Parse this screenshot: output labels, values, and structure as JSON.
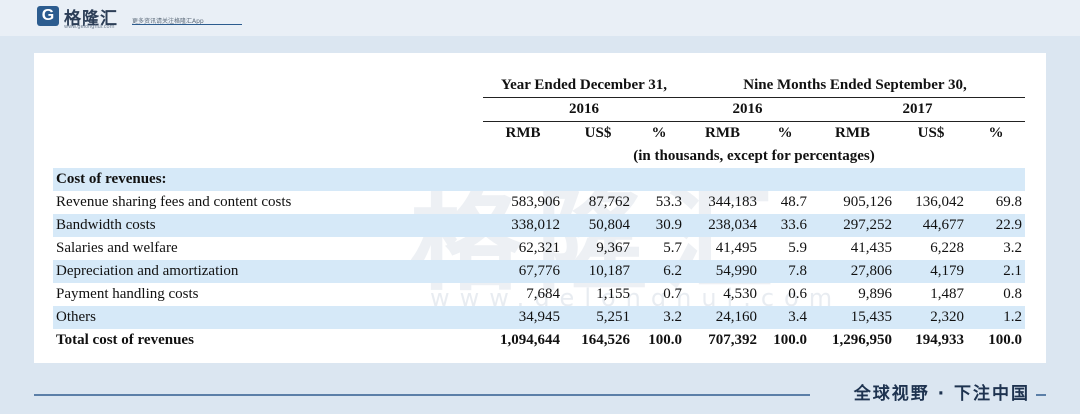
{
  "brand": {
    "logo_letter": "G",
    "name": "格隆汇",
    "url": "www.gelonghui.com",
    "slogan": "更多资讯请关注格隆汇App",
    "watermark": "格隆汇",
    "watermark_url": "www.gelonghui.com",
    "bottom_slogan": "全球视野 · 下注中国",
    "accent_color": "#2c5c8f",
    "row_shade_color": "#d6e9f8"
  },
  "table": {
    "group_headers": {
      "year_ended": "Year Ended December 31,",
      "nine_months": "Nine Months Ended September 30,"
    },
    "year_headers": {
      "fy2016": "2016",
      "nm2016": "2016",
      "nm2017": "2017"
    },
    "col_headers": [
      "RMB",
      "US$",
      "%",
      "RMB",
      "%",
      "RMB",
      "US$",
      "%"
    ],
    "unit_note": "(in thousands, except for percentages)",
    "section_title": "Cost of revenues:",
    "rows": [
      {
        "label": "Revenue sharing fees and content costs",
        "values": [
          "583,906",
          "87,762",
          "53.3",
          "344,183",
          "48.7",
          "905,126",
          "136,042",
          "69.8"
        ]
      },
      {
        "label": "Bandwidth costs",
        "values": [
          "338,012",
          "50,804",
          "30.9",
          "238,034",
          "33.6",
          "297,252",
          "44,677",
          "22.9"
        ]
      },
      {
        "label": "Salaries and welfare",
        "values": [
          "62,321",
          "9,367",
          "5.7",
          "41,495",
          "5.9",
          "41,435",
          "6,228",
          "3.2"
        ]
      },
      {
        "label": "Depreciation and amortization",
        "values": [
          "67,776",
          "10,187",
          "6.2",
          "54,990",
          "7.8",
          "27,806",
          "4,179",
          "2.1"
        ]
      },
      {
        "label": "Payment handling costs",
        "values": [
          "7,684",
          "1,155",
          "0.7",
          "4,530",
          "0.6",
          "9,896",
          "1,487",
          "0.8"
        ]
      },
      {
        "label": "Others",
        "values": [
          "34,945",
          "5,251",
          "3.2",
          "24,160",
          "3.4",
          "15,435",
          "2,320",
          "1.2"
        ]
      }
    ],
    "total": {
      "label": "Total cost of revenues",
      "values": [
        "1,094,644",
        "164,526",
        "100.0",
        "707,392",
        "100.0",
        "1,296,950",
        "194,933",
        "100.0"
      ]
    }
  }
}
